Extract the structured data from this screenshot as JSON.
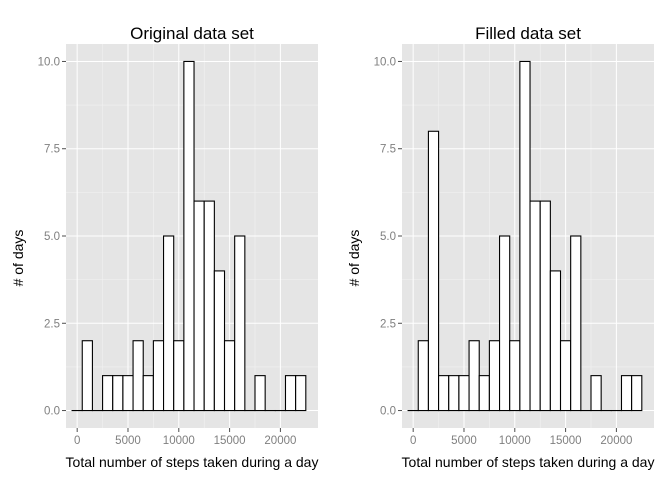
{
  "chart_data": [
    {
      "type": "bar",
      "title": "Original data set",
      "xlabel": "Total number of steps taken during a day",
      "ylabel": "# of days",
      "bin_width": 1000,
      "bin_centers": [
        0,
        1000,
        2000,
        3000,
        4000,
        5000,
        6000,
        7000,
        8000,
        9000,
        10000,
        11000,
        12000,
        13000,
        14000,
        15000,
        16000,
        17000,
        18000,
        19000,
        20000,
        21000,
        22000
      ],
      "values": [
        0,
        2,
        0,
        1,
        1,
        1,
        2,
        1,
        2,
        5,
        2,
        10,
        6,
        6,
        4,
        2,
        5,
        0,
        1,
        0,
        0,
        1,
        1
      ],
      "xlim": [
        -1100,
        23700
      ],
      "ylim": [
        -0.5,
        10.5
      ],
      "x_ticks": [
        0,
        5000,
        10000,
        15000,
        20000
      ],
      "x_tick_labels": [
        "0",
        "5000",
        "10000",
        "15000",
        "20000"
      ],
      "y_ticks": [
        0,
        2.5,
        5,
        7.5,
        10
      ],
      "y_tick_labels": [
        "0.0",
        "2.5",
        "5.0",
        "7.5",
        "10.0"
      ],
      "grid": true
    },
    {
      "type": "bar",
      "title": "Filled data set",
      "xlabel": "Total number of steps taken during a day",
      "ylabel": "# of days",
      "bin_width": 1000,
      "bin_centers": [
        0,
        1000,
        2000,
        3000,
        4000,
        5000,
        6000,
        7000,
        8000,
        9000,
        10000,
        11000,
        12000,
        13000,
        14000,
        15000,
        16000,
        17000,
        18000,
        19000,
        20000,
        21000,
        22000
      ],
      "values": [
        0,
        2,
        8,
        1,
        1,
        1,
        2,
        1,
        2,
        5,
        2,
        10,
        6,
        6,
        4,
        2,
        5,
        0,
        1,
        0,
        0,
        1,
        1
      ],
      "xlim": [
        -1100,
        23700
      ],
      "ylim": [
        -0.5,
        10.5
      ],
      "x_ticks": [
        0,
        5000,
        10000,
        15000,
        20000
      ],
      "x_tick_labels": [
        "0",
        "5000",
        "10000",
        "15000",
        "20000"
      ],
      "y_ticks": [
        0,
        2.5,
        5,
        7.5,
        10
      ],
      "y_tick_labels": [
        "0.0",
        "2.5",
        "5.0",
        "7.5",
        "10.0"
      ],
      "grid": true
    }
  ]
}
